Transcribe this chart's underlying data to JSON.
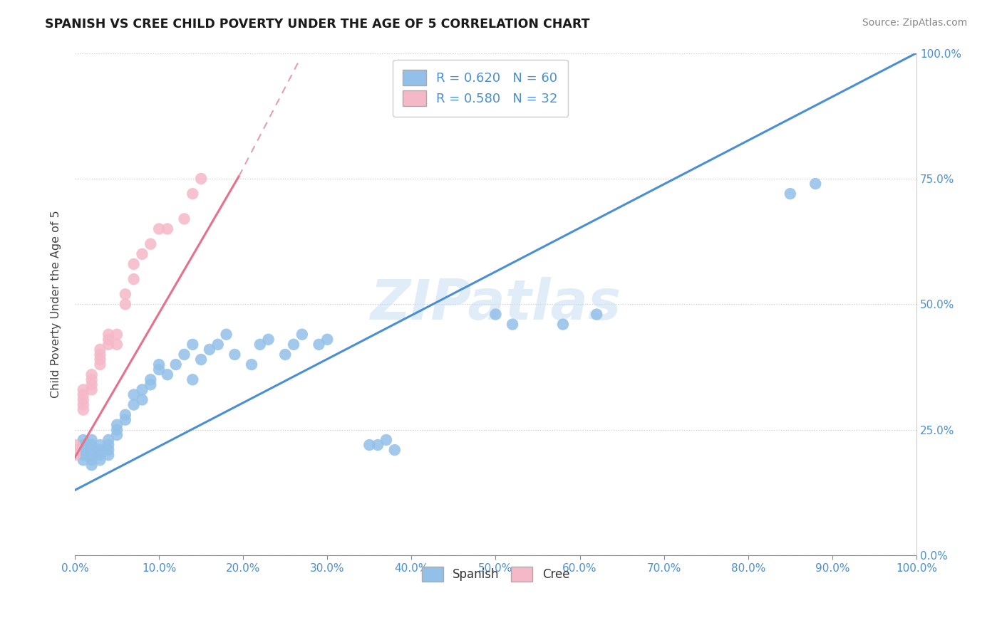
{
  "title": "SPANISH VS CREE CHILD POVERTY UNDER THE AGE OF 5 CORRELATION CHART",
  "source": "Source: ZipAtlas.com",
  "ylabel": "Child Poverty Under the Age of 5",
  "spanish_R": 0.62,
  "spanish_N": 60,
  "cree_R": 0.58,
  "cree_N": 32,
  "spanish_color": "#92c0e8",
  "cree_color": "#f5b8c8",
  "spanish_line_color": "#4a8fd4",
  "cree_line_color": "#e8708a",
  "cree_dash_color": "#e0a0b0",
  "xlim": [
    0.0,
    1.0
  ],
  "ylim": [
    0.0,
    1.0
  ],
  "spanish_line_x0": 0.0,
  "spanish_line_y0": 0.13,
  "spanish_line_x1": 1.0,
  "spanish_line_y1": 1.0,
  "cree_line_solid_x0": 0.0,
  "cree_line_solid_y0": 0.195,
  "cree_line_solid_x1": 0.195,
  "cree_line_solid_y1": 0.755,
  "cree_line_dash_x0": 0.195,
  "cree_line_dash_y0": 0.755,
  "cree_line_dash_x1": 0.265,
  "cree_line_dash_y1": 0.98,
  "spanish_scatter_x": [
    0.01,
    0.01,
    0.01,
    0.01,
    0.01,
    0.02,
    0.02,
    0.02,
    0.02,
    0.02,
    0.02,
    0.03,
    0.03,
    0.03,
    0.03,
    0.04,
    0.04,
    0.04,
    0.04,
    0.05,
    0.05,
    0.05,
    0.06,
    0.06,
    0.07,
    0.07,
    0.08,
    0.08,
    0.09,
    0.09,
    0.1,
    0.1,
    0.11,
    0.12,
    0.13,
    0.14,
    0.14,
    0.15,
    0.16,
    0.17,
    0.18,
    0.19,
    0.21,
    0.22,
    0.23,
    0.25,
    0.26,
    0.27,
    0.29,
    0.3,
    0.35,
    0.36,
    0.37,
    0.38,
    0.5,
    0.52,
    0.58,
    0.62,
    0.85,
    0.88
  ],
  "spanish_scatter_y": [
    0.2,
    0.21,
    0.22,
    0.23,
    0.19,
    0.21,
    0.22,
    0.2,
    0.19,
    0.18,
    0.23,
    0.2,
    0.22,
    0.21,
    0.19,
    0.23,
    0.21,
    0.2,
    0.22,
    0.25,
    0.26,
    0.24,
    0.27,
    0.28,
    0.3,
    0.32,
    0.33,
    0.31,
    0.35,
    0.34,
    0.37,
    0.38,
    0.36,
    0.38,
    0.4,
    0.42,
    0.35,
    0.39,
    0.41,
    0.42,
    0.44,
    0.4,
    0.38,
    0.42,
    0.43,
    0.4,
    0.42,
    0.44,
    0.42,
    0.43,
    0.22,
    0.22,
    0.23,
    0.21,
    0.48,
    0.46,
    0.46,
    0.48,
    0.72,
    0.74
  ],
  "cree_scatter_x": [
    0.0,
    0.0,
    0.0,
    0.01,
    0.01,
    0.01,
    0.01,
    0.01,
    0.02,
    0.02,
    0.02,
    0.02,
    0.03,
    0.03,
    0.03,
    0.03,
    0.04,
    0.04,
    0.04,
    0.05,
    0.05,
    0.06,
    0.06,
    0.07,
    0.07,
    0.08,
    0.09,
    0.1,
    0.11,
    0.13,
    0.14,
    0.15
  ],
  "cree_scatter_y": [
    0.2,
    0.21,
    0.22,
    0.3,
    0.31,
    0.29,
    0.32,
    0.33,
    0.33,
    0.35,
    0.34,
    0.36,
    0.38,
    0.4,
    0.39,
    0.41,
    0.42,
    0.43,
    0.44,
    0.42,
    0.44,
    0.5,
    0.52,
    0.55,
    0.58,
    0.6,
    0.62,
    0.65,
    0.65,
    0.67,
    0.72,
    0.75
  ]
}
